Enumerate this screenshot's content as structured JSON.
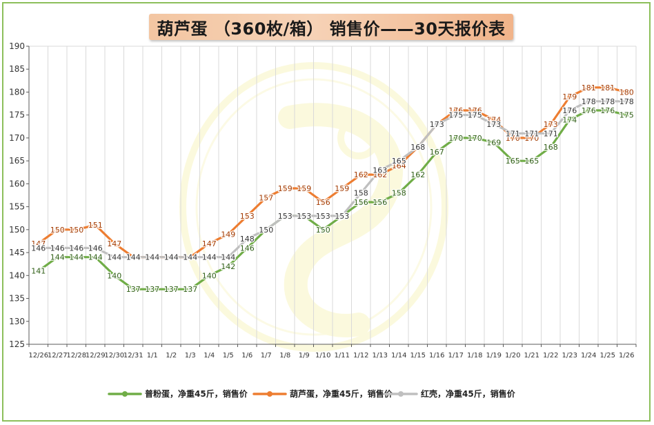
{
  "chart_data": {
    "type": "line",
    "title": "葫芦蛋 （360枚/箱） 销售价——30天报价表",
    "xlabel": "",
    "ylabel": "",
    "ylim": [
      125,
      190
    ],
    "y_ticks": [
      125,
      130,
      135,
      140,
      145,
      150,
      155,
      160,
      165,
      170,
      175,
      180,
      185,
      190
    ],
    "grid": "vertical",
    "legend_position": "bottom",
    "categories": [
      "12/26",
      "12/27",
      "12/28",
      "12/29",
      "12/30",
      "12/31",
      "1/1",
      "1/2",
      "1/3",
      "1/4",
      "1/5",
      "1/6",
      "1/7",
      "1/8",
      "1/9",
      "1/10",
      "1/11",
      "1/12",
      "1/13",
      "1/14",
      "1/15",
      "1/16",
      "1/17",
      "1/18",
      "1/19",
      "1/20",
      "1/21",
      "1/22",
      "1/23",
      "1/24",
      "1/25",
      "1/26"
    ],
    "series": [
      {
        "name": "普粉蛋，净重45斤，销售价",
        "color": "#70ad47",
        "label_color": "#2e5e14",
        "values": [
          141,
          144,
          144,
          144,
          140,
          137,
          137,
          137,
          137,
          140,
          142,
          146,
          150,
          153,
          153,
          150,
          153,
          156,
          156,
          158,
          162,
          167,
          170,
          170,
          169,
          165,
          165,
          168,
          174,
          176,
          176,
          175
        ],
        "labels": [
          141,
          144,
          144,
          144,
          140,
          137,
          137,
          137,
          137,
          140,
          142,
          146,
          null,
          null,
          null,
          150,
          null,
          156,
          156,
          158,
          162,
          167,
          170,
          170,
          169,
          165,
          165,
          168,
          174,
          176,
          176,
          175
        ]
      },
      {
        "name": "葫芦蛋，净重45斤，销售价",
        "color": "#ed7d31",
        "label_color": "#a33a00",
        "values": [
          147,
          150,
          150,
          151,
          147,
          144,
          144,
          144,
          144,
          147,
          149,
          153,
          157,
          159,
          159,
          156,
          159,
          162,
          162,
          164,
          168,
          173,
          176,
          176,
          174,
          170,
          170,
          173,
          179,
          181,
          181,
          180
        ],
        "labels": [
          147,
          150,
          150,
          151,
          147,
          null,
          null,
          null,
          null,
          147,
          149,
          153,
          157,
          159,
          159,
          156,
          159,
          162,
          162,
          164,
          null,
          null,
          176,
          176,
          174,
          170,
          170,
          173,
          179,
          181,
          181,
          180
        ]
      },
      {
        "name": "红壳，净重45斤，销售价",
        "color": "#bfbfbf",
        "label_color": "#333333",
        "values": [
          146,
          146,
          146,
          146,
          144,
          144,
          144,
          144,
          144,
          144,
          144,
          148,
          150,
          153,
          153,
          153,
          153,
          158,
          163,
          165,
          168,
          173,
          175,
          175,
          173,
          171,
          171,
          171,
          176,
          178,
          178,
          178
        ],
        "labels": [
          146,
          146,
          146,
          146,
          144,
          144,
          144,
          144,
          144,
          144,
          144,
          148,
          150,
          153,
          153,
          153,
          153,
          158,
          163,
          165,
          168,
          173,
          175,
          175,
          173,
          171,
          171,
          171,
          176,
          178,
          178,
          178
        ]
      }
    ]
  }
}
